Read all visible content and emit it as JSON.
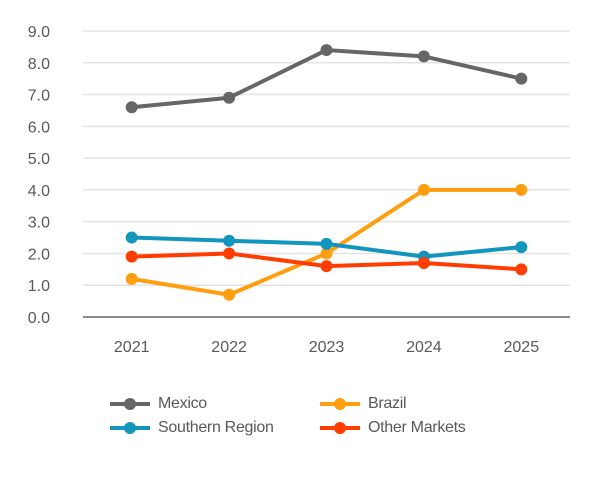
{
  "chart_data": {
    "type": "line",
    "title": "",
    "xlabel": "",
    "ylabel": "",
    "categories": [
      "2021",
      "2022",
      "2023",
      "2024",
      "2025"
    ],
    "ylim": [
      0,
      9
    ],
    "yticks": [
      "0.0",
      "1.0",
      "2.0",
      "3.0",
      "4.0",
      "5.0",
      "6.0",
      "7.0",
      "8.0",
      "9.0"
    ],
    "grid": true,
    "legend_position": "bottom",
    "series": [
      {
        "name": "Mexico",
        "color": "#666666",
        "values": [
          6.6,
          6.9,
          8.4,
          8.2,
          7.5
        ]
      },
      {
        "name": "Brazil",
        "color": "#FF9E0F",
        "values": [
          1.2,
          0.7,
          2.0,
          4.0,
          4.0
        ]
      },
      {
        "name": "Southern Region",
        "color": "#1396BE",
        "values": [
          2.5,
          2.4,
          2.3,
          1.9,
          2.2
        ]
      },
      {
        "name": "Other Markets",
        "color": "#FF3D00",
        "values": [
          1.9,
          2.0,
          1.6,
          1.7,
          1.5
        ]
      }
    ]
  }
}
